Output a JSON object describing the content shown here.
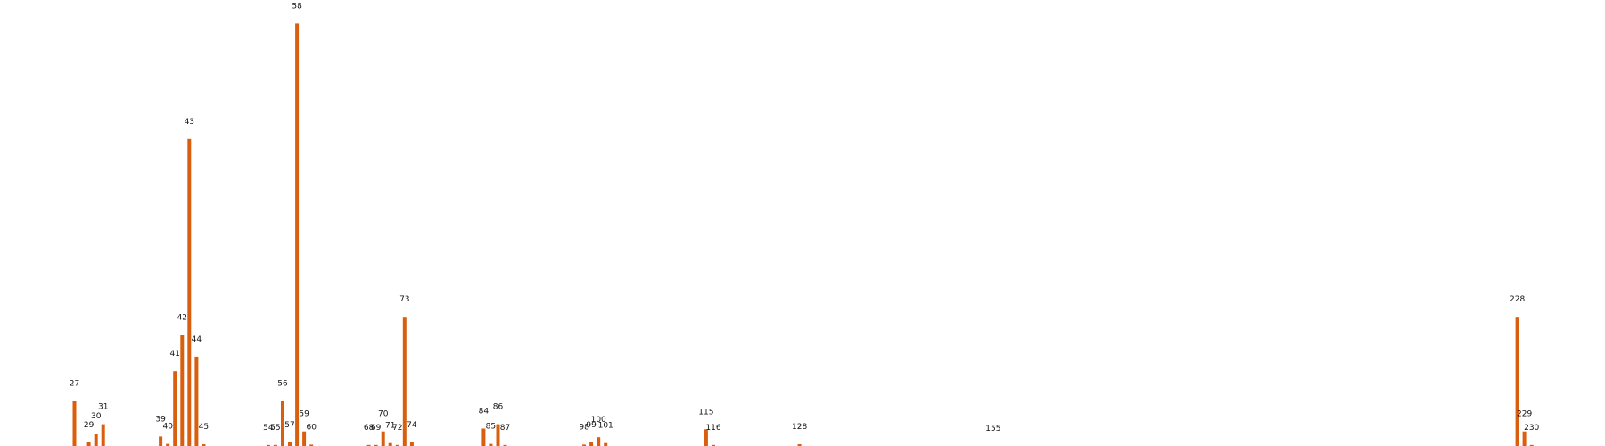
{
  "colors": {
    "bar": "#d95f0e",
    "label": "#111111",
    "background": "#ffffff"
  },
  "chart_data": {
    "type": "bar",
    "title": "",
    "xlabel": "",
    "ylabel": "",
    "grid": false,
    "axes_visible": false,
    "ylim": [
      0,
      58.5
    ],
    "xlim": [
      17,
      234
    ],
    "bars": [
      {
        "label": "27",
        "x": 27,
        "value": 6.2
      },
      {
        "label": "29",
        "x": 29,
        "value": 0.5
      },
      {
        "label": "30",
        "x": 30,
        "value": 1.7
      },
      {
        "label": "31",
        "x": 31,
        "value": 3.0
      },
      {
        "label": "39",
        "x": 39,
        "value": 1.3
      },
      {
        "label": "40",
        "x": 40,
        "value": 0.3
      },
      {
        "label": "41",
        "x": 41,
        "value": 10.3
      },
      {
        "label": "42",
        "x": 42,
        "value": 15.3
      },
      {
        "label": "43",
        "x": 43,
        "value": 42.3
      },
      {
        "label": "44",
        "x": 44,
        "value": 12.3
      },
      {
        "label": "45",
        "x": 45,
        "value": 0.25
      },
      {
        "label": "54",
        "x": 54,
        "value": 0.15
      },
      {
        "label": "55",
        "x": 55,
        "value": 0.15
      },
      {
        "label": "56",
        "x": 56,
        "value": 6.2
      },
      {
        "label": "57",
        "x": 57,
        "value": 0.5
      },
      {
        "label": "58",
        "x": 58,
        "value": 58.2
      },
      {
        "label": "59",
        "x": 59,
        "value": 2.0
      },
      {
        "label": "60",
        "x": 60,
        "value": 0.2
      },
      {
        "label": "68",
        "x": 68,
        "value": 0.15
      },
      {
        "label": "69",
        "x": 69,
        "value": 0.15
      },
      {
        "label": "70",
        "x": 70,
        "value": 2.0
      },
      {
        "label": "71",
        "x": 71,
        "value": 0.4
      },
      {
        "label": "72",
        "x": 72,
        "value": 0.15
      },
      {
        "label": "73",
        "x": 73,
        "value": 17.8
      },
      {
        "label": "74",
        "x": 74,
        "value": 0.5
      },
      {
        "label": "84",
        "x": 84,
        "value": 2.4
      },
      {
        "label": "85",
        "x": 85,
        "value": 0.3
      },
      {
        "label": "86",
        "x": 86,
        "value": 3.0
      },
      {
        "label": "87",
        "x": 87,
        "value": 0.15
      },
      {
        "label": "98",
        "x": 98,
        "value": 0.2
      },
      {
        "label": "99",
        "x": 99,
        "value": 0.5
      },
      {
        "label": "100",
        "x": 100,
        "value": 1.2
      },
      {
        "label": "101",
        "x": 101,
        "value": 0.4
      },
      {
        "label": "115",
        "x": 115,
        "value": 2.3
      },
      {
        "label": "116",
        "x": 116,
        "value": 0.15
      },
      {
        "label": "128",
        "x": 128,
        "value": 0.25
      },
      {
        "label": "155",
        "x": 155,
        "value": 0
      },
      {
        "label": "228",
        "x": 228,
        "value": 17.8
      },
      {
        "label": "229",
        "x": 229,
        "value": 2.0
      },
      {
        "label": "230",
        "x": 230,
        "value": 0.15
      }
    ]
  }
}
